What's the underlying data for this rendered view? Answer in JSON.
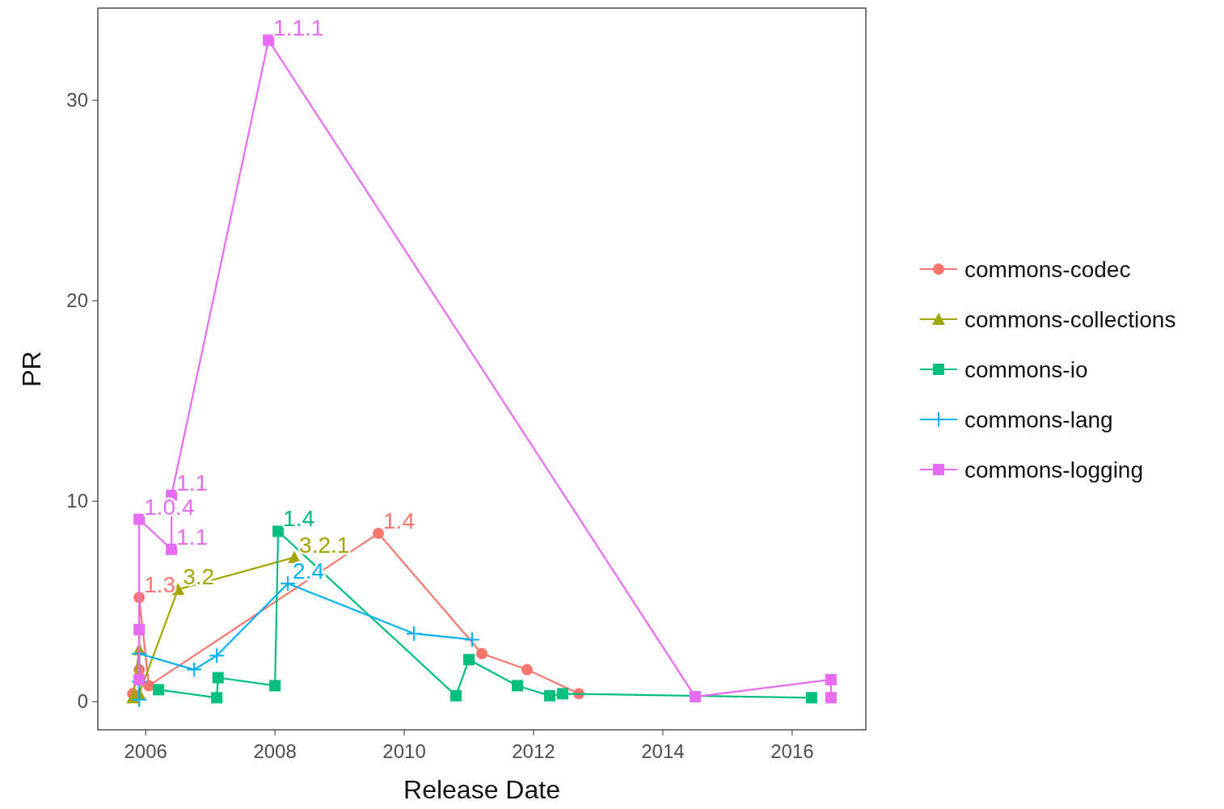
{
  "chart_data": {
    "type": "line",
    "xlabel": "Release Date",
    "ylabel": "PR",
    "xlim": [
      2005.26,
      2017.14
    ],
    "xticks": [
      2006,
      2008,
      2010,
      2012,
      2014,
      2016
    ],
    "ylim": [
      -1.4,
      34.6
    ],
    "yticks": [
      0,
      10,
      20,
      30
    ],
    "grid": false,
    "legend": "right",
    "line_style": "solid",
    "series": [
      {
        "name": "commons-codec",
        "color": "#f8766d",
        "marker": "circle",
        "x": [
          2005.8,
          2005.9,
          2005.9,
          2006.05,
          2009.6,
          2011.2,
          2011.9,
          2012.7
        ],
        "values": [
          0.4,
          1.6,
          5.2,
          0.8,
          8.4,
          2.4,
          1.6,
          0.4
        ]
      },
      {
        "name": "commons-collections",
        "color": "#a3a500",
        "marker": "triangle",
        "x": [
          2005.8,
          2005.9,
          2005.9,
          2006.5,
          2008.3
        ],
        "values": [
          0.2,
          2.6,
          0.4,
          5.6,
          7.2
        ]
      },
      {
        "name": "commons-io",
        "color": "#00bf7d",
        "marker": "square",
        "x": [
          2006.2,
          2007.1,
          2007.12,
          2008.0,
          2008.05,
          2010.8,
          2011.0,
          2011.75,
          2012.25,
          2012.45,
          2016.3
        ],
        "values": [
          0.6,
          0.2,
          1.2,
          0.8,
          8.5,
          0.3,
          2.1,
          0.8,
          0.3,
          0.4,
          0.2
        ]
      },
      {
        "name": "commons-lang",
        "color": "#00b0f6",
        "marker": "cross",
        "x": [
          2005.9,
          2005.9,
          2005.9,
          2006.75,
          2007.1,
          2008.2,
          2010.15,
          2011.05
        ],
        "values": [
          0.1,
          1.0,
          2.4,
          1.6,
          2.3,
          5.9,
          3.4,
          3.1
        ]
      },
      {
        "name": "commons-logging",
        "color": "#e76bf3",
        "marker": "square",
        "x": [
          2005.9,
          2005.9,
          2005.9,
          2006.4,
          2006.4,
          2007.9,
          2014.5,
          2016.6,
          2016.6
        ],
        "values": [
          1.1,
          3.6,
          9.1,
          7.6,
          10.3,
          33.0,
          0.25,
          1.1,
          0.2
        ]
      }
    ],
    "annotations": [
      {
        "text": "1.3",
        "x": 2005.9,
        "y": 5.2
      },
      {
        "text": "1.4",
        "x": 2009.6,
        "y": 8.4
      },
      {
        "text": "3.2",
        "x": 2006.5,
        "y": 5.6
      },
      {
        "text": "3.2.1",
        "x": 2008.3,
        "y": 7.2
      },
      {
        "text": "1.4",
        "x": 2008.05,
        "y": 8.5
      },
      {
        "text": "2.4",
        "x": 2008.2,
        "y": 5.9
      },
      {
        "text": "1.0.4",
        "x": 2005.9,
        "y": 9.1
      },
      {
        "text": "1.1",
        "x": 2006.4,
        "y": 7.6
      },
      {
        "text": "1.1",
        "x": 2006.4,
        "y": 10.3
      },
      {
        "text": "1.1.1",
        "x": 2007.9,
        "y": 33.0
      }
    ]
  }
}
